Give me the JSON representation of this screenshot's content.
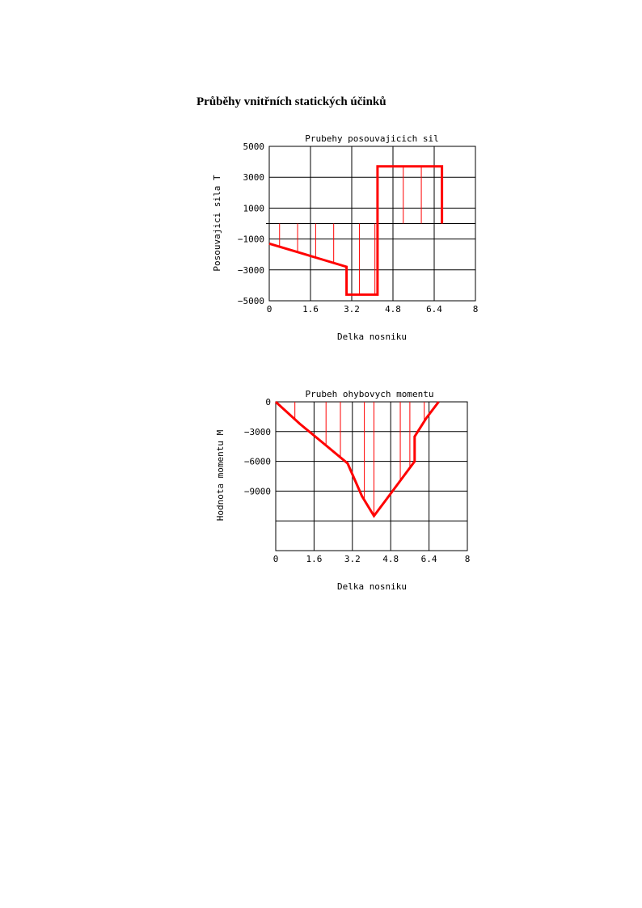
{
  "page": {
    "heading": "Průběhy vnitřních statických účinků"
  },
  "chart_data": [
    {
      "type": "line",
      "title": "Prubehy posouvajicich sil",
      "xlabel": "Delka nosniku",
      "ylabel": "Posouvajici sila T",
      "xlim": [
        0,
        8
      ],
      "ylim": [
        -5000,
        5000
      ],
      "x_ticks": [
        "0",
        "1.6",
        "3.2",
        "4.8",
        "6.4",
        "8"
      ],
      "y_ticks": [
        "5000",
        "3000",
        "1000",
        "−1000",
        "−3000",
        "−5000"
      ],
      "grid": true,
      "series": [
        {
          "x": [
            0,
            1.8,
            3.0,
            3.0,
            4.2,
            4.2,
            6.7,
            6.7
          ],
          "y": [
            -1300,
            -2200,
            -2800,
            -4600,
            -4600,
            3700,
            3700,
            0
          ]
        }
      ],
      "hatch_x": [
        0.4,
        1.1,
        1.8,
        2.5,
        3.5,
        4.1,
        5.2,
        5.9,
        6.7
      ],
      "color": "#ff0000"
    },
    {
      "type": "line",
      "title": "Prubeh ohybovych momentu",
      "xlabel": "Delka nosniku",
      "ylabel": "Hodnota momentu M",
      "xlim": [
        0,
        8
      ],
      "ylim": [
        -15000,
        0
      ],
      "x_ticks": [
        "0",
        "1.6",
        "3.2",
        "4.8",
        "6.4",
        "8"
      ],
      "y_ticks": [
        "0",
        "−3000",
        "−6000",
        "−9000"
      ],
      "grid": true,
      "series": [
        {
          "x": [
            0,
            1.0,
            2.0,
            3.0,
            3.6,
            4.1,
            4.6,
            5.8,
            5.8,
            6.3,
            6.8
          ],
          "y": [
            0,
            -2200,
            -4200,
            -6200,
            -9500,
            -11500,
            -9900,
            -6000,
            -3500,
            -1600,
            0
          ]
        }
      ],
      "hatch_x": [
        0.8,
        2.1,
        2.7,
        3.7,
        4.1,
        5.2,
        5.6,
        6.2
      ],
      "color": "#ff0000"
    }
  ]
}
